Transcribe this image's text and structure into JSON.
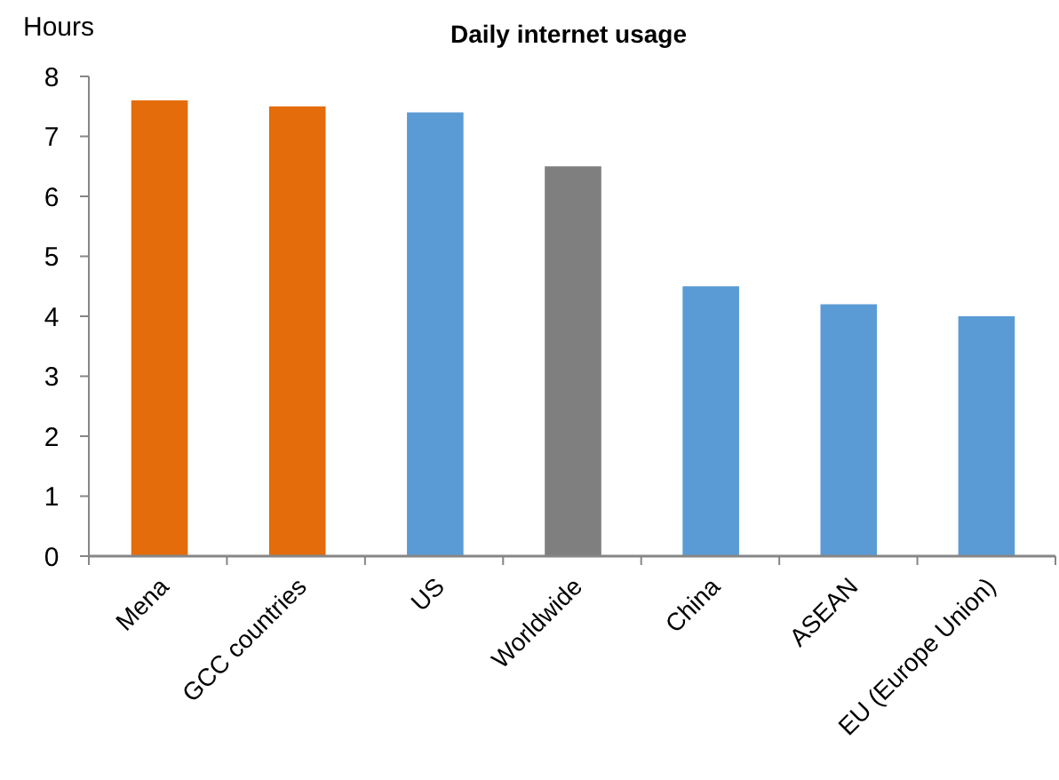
{
  "chart_data": {
    "type": "bar",
    "title": "Daily internet usage",
    "ylabel": "Hours",
    "categories": [
      "Mena",
      "GCC countries",
      "US",
      "Worldwide",
      "China",
      "ASEAN",
      "EU (Europe Union)"
    ],
    "values": [
      7.6,
      7.5,
      7.4,
      6.5,
      4.5,
      4.2,
      4.0
    ],
    "colors": [
      "#e46c0a",
      "#e46c0a",
      "#5b9bd5",
      "#7f7f7f",
      "#5b9bd5",
      "#5b9bd5",
      "#5b9bd5"
    ],
    "ylim": [
      0,
      8
    ],
    "yticks": [
      0,
      1,
      2,
      3,
      4,
      5,
      6,
      7,
      8
    ],
    "grid": false
  }
}
